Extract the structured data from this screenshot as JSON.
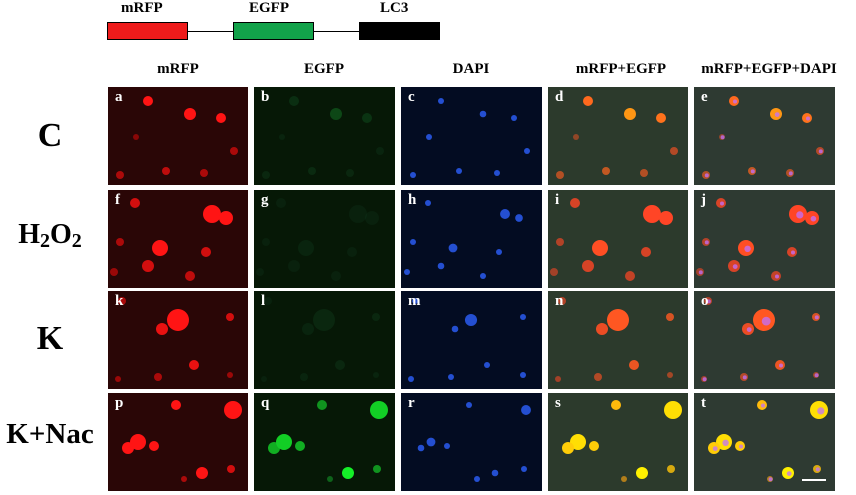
{
  "construct": {
    "labels": [
      "mRFP",
      "EGFP",
      "LC3"
    ],
    "colors": [
      "#ee1b1b",
      "#12a24a",
      "#000000"
    ]
  },
  "columns": [
    "mRFP",
    "EGFP",
    "DAPI",
    "mRFP+EGFP",
    "mRFP+EGFP+DAPI"
  ],
  "rows": [
    {
      "label": "C",
      "panels": [
        "a",
        "b",
        "c",
        "d",
        "e"
      ]
    },
    {
      "label_main": "H",
      "label_sub1": "2",
      "label_mid": "O",
      "label_sub2": "2",
      "panels": [
        "f",
        "g",
        "h",
        "i",
        "j"
      ]
    },
    {
      "label": "K",
      "panels": [
        "k",
        "l",
        "m",
        "n",
        "o"
      ]
    },
    {
      "label": "K+Nac",
      "panels": [
        "p",
        "q",
        "r",
        "s",
        "t"
      ]
    }
  ],
  "colors": {
    "mrfp_bg": "#2a0606",
    "egfp_bg": "#061806",
    "dapi_bg": "#030c22",
    "merge_bg": "#2c3a2c",
    "merge3_bg": "#2e3a32"
  }
}
